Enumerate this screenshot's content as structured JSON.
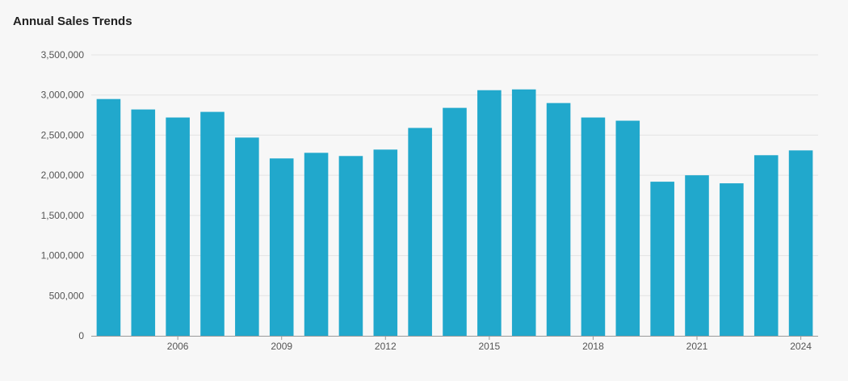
{
  "chart_data": {
    "type": "bar",
    "title": "Annual Sales Trends",
    "categories": [
      "2004",
      "2005",
      "2006",
      "2007",
      "2008",
      "2009",
      "2010",
      "2011",
      "2012",
      "2013",
      "2014",
      "2015",
      "2016",
      "2017",
      "2018",
      "2019",
      "2020",
      "2021",
      "2022",
      "2023",
      "2024"
    ],
    "values": [
      2950000,
      2820000,
      2720000,
      2790000,
      2470000,
      2210000,
      2280000,
      2240000,
      2320000,
      2590000,
      2840000,
      3060000,
      3070000,
      2900000,
      2720000,
      2680000,
      1920000,
      2000000,
      1900000,
      2250000,
      2310000
    ],
    "x_tick_labels": [
      "2006",
      "2009",
      "2012",
      "2015",
      "2018",
      "2021",
      "2024"
    ],
    "y_tick_labels": [
      "0",
      "500,000",
      "1,000,000",
      "1,500,000",
      "2,000,000",
      "2,500,000",
      "3,000,000",
      "3,500,000"
    ],
    "ylim": [
      0,
      3500000
    ],
    "ystep": 500000,
    "xlabel": "",
    "ylabel": "",
    "grid": true,
    "bar_color": "#21a8cc"
  }
}
